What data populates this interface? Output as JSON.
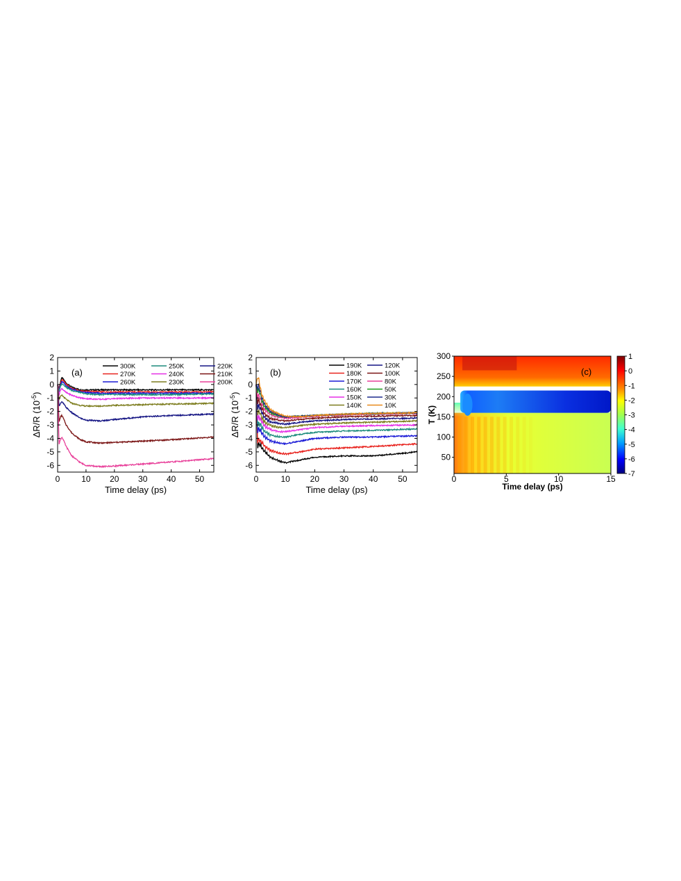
{
  "chart_data": [
    {
      "type": "line",
      "panel_label": "(a)",
      "xlabel": "Time delay (ps)",
      "ylabel_main": "ΔR/R (10",
      "ylabel_exp": "-5",
      "ylabel_tail": ")",
      "xlim": [
        0,
        55
      ],
      "ylim": [
        -6.5,
        2
      ],
      "xticks": [
        0,
        10,
        20,
        30,
        40,
        50
      ],
      "yticks": [
        -6,
        -5,
        -4,
        -3,
        -2,
        -1,
        0,
        1,
        2
      ],
      "legend_position": "top-right",
      "legend_columns": 3,
      "series": [
        {
          "name": "300K",
          "color": "#000000",
          "x": [
            0,
            0.5,
            1,
            1.5,
            2,
            3,
            5,
            8,
            10,
            15,
            20,
            30,
            40,
            55
          ],
          "y": [
            0,
            -0.3,
            0.2,
            0.5,
            0.4,
            0.1,
            -0.2,
            -0.4,
            -0.4,
            -0.4,
            -0.4,
            -0.4,
            -0.4,
            -0.4
          ]
        },
        {
          "name": "270K",
          "color": "#e8231e",
          "x": [
            0,
            0.5,
            1,
            1.5,
            2,
            3,
            5,
            8,
            10,
            15,
            20,
            30,
            40,
            55
          ],
          "y": [
            0,
            -0.4,
            0.1,
            0.35,
            0.3,
            0.0,
            -0.3,
            -0.5,
            -0.5,
            -0.55,
            -0.55,
            -0.55,
            -0.55,
            -0.55
          ]
        },
        {
          "name": "260K",
          "color": "#1a1ad6",
          "x": [
            0,
            0.5,
            1,
            1.5,
            2,
            3,
            5,
            8,
            10,
            15,
            20,
            30,
            40,
            55
          ],
          "y": [
            0,
            -0.5,
            0.0,
            0.2,
            0.15,
            -0.1,
            -0.35,
            -0.55,
            -0.6,
            -0.65,
            -0.65,
            -0.65,
            -0.65,
            -0.65
          ]
        },
        {
          "name": "250K",
          "color": "#1b8a7c",
          "x": [
            0,
            0.5,
            1,
            1.5,
            2,
            3,
            5,
            8,
            10,
            15,
            20,
            30,
            40,
            55
          ],
          "y": [
            0,
            -0.6,
            -0.1,
            0.05,
            0.0,
            -0.2,
            -0.45,
            -0.6,
            -0.7,
            -0.75,
            -0.75,
            -0.75,
            -0.75,
            -0.7
          ]
        },
        {
          "name": "240K",
          "color": "#e62fe6",
          "x": [
            0,
            0.5,
            1,
            1.5,
            2,
            3,
            5,
            8,
            10,
            15,
            20,
            30,
            40,
            55
          ],
          "y": [
            0,
            -0.8,
            -0.4,
            -0.3,
            -0.4,
            -0.6,
            -0.8,
            -1.0,
            -1.05,
            -1.1,
            -1.05,
            -1.0,
            -1.0,
            -1.0
          ]
        },
        {
          "name": "230K",
          "color": "#7d7d1e",
          "x": [
            0,
            0.5,
            1,
            1.5,
            2,
            3,
            5,
            8,
            10,
            15,
            20,
            30,
            40,
            55
          ],
          "y": [
            0,
            -1.1,
            -0.9,
            -0.8,
            -0.9,
            -1.1,
            -1.4,
            -1.55,
            -1.6,
            -1.6,
            -1.55,
            -1.5,
            -1.45,
            -1.4
          ]
        },
        {
          "name": "220K",
          "color": "#141483",
          "x": [
            0,
            0.5,
            1,
            1.5,
            2,
            3,
            5,
            8,
            10,
            15,
            20,
            30,
            40,
            55
          ],
          "y": [
            0,
            -1.6,
            -1.4,
            -1.3,
            -1.4,
            -1.7,
            -2.1,
            -2.5,
            -2.65,
            -2.7,
            -2.6,
            -2.4,
            -2.3,
            -2.2
          ]
        },
        {
          "name": "210K",
          "color": "#7a1414",
          "x": [
            0,
            0.5,
            1,
            1.5,
            2,
            3,
            5,
            8,
            10,
            15,
            20,
            30,
            40,
            55
          ],
          "y": [
            0,
            -2.8,
            -2.4,
            -2.3,
            -2.5,
            -3.0,
            -3.6,
            -4.1,
            -4.25,
            -4.35,
            -4.3,
            -4.2,
            -4.1,
            -3.9
          ]
        },
        {
          "name": "200K",
          "color": "#e8409a",
          "x": [
            0,
            0.5,
            1,
            1.5,
            2,
            3,
            5,
            8,
            10,
            15,
            20,
            30,
            40,
            55
          ],
          "y": [
            0,
            -4.4,
            -4.1,
            -3.9,
            -4.1,
            -4.6,
            -5.3,
            -5.8,
            -6.0,
            -6.1,
            -6.05,
            -5.9,
            -5.75,
            -5.5
          ]
        }
      ]
    },
    {
      "type": "line",
      "panel_label": "(b)",
      "xlabel": "Time delay (ps)",
      "ylabel_main": "ΔR/R (10",
      "ylabel_exp": "-5",
      "ylabel_tail": ")",
      "xlim": [
        0,
        55
      ],
      "ylim": [
        -6.5,
        2
      ],
      "xticks": [
        0,
        10,
        20,
        30,
        40,
        50
      ],
      "yticks": [
        -6,
        -5,
        -4,
        -3,
        -2,
        -1,
        0,
        1,
        2
      ],
      "legend_position": "top-right",
      "legend_columns": 2,
      "series": [
        {
          "name": "190K",
          "color": "#000000",
          "x": [
            0,
            0.5,
            1,
            1.5,
            2,
            3,
            5,
            8,
            10,
            15,
            20,
            30,
            40,
            55
          ],
          "y": [
            0,
            -4.6,
            -4.4,
            -4.5,
            -4.7,
            -5.0,
            -5.4,
            -5.7,
            -5.8,
            -5.6,
            -5.4,
            -5.3,
            -5.3,
            -5.0
          ]
        },
        {
          "name": "180K",
          "color": "#e8231e",
          "x": [
            0,
            0.5,
            1,
            1.5,
            2,
            3,
            5,
            8,
            10,
            15,
            20,
            30,
            40,
            55
          ],
          "y": [
            0,
            -4.2,
            -4.1,
            -4.2,
            -4.3,
            -4.6,
            -4.9,
            -5.1,
            -5.15,
            -5.0,
            -4.8,
            -4.7,
            -4.6,
            -4.4
          ]
        },
        {
          "name": "170K",
          "color": "#1a1ad6",
          "x": [
            0,
            0.5,
            1,
            1.5,
            2,
            3,
            5,
            8,
            10,
            15,
            20,
            30,
            40,
            55
          ],
          "y": [
            0,
            -3.4,
            -3.3,
            -3.4,
            -3.6,
            -3.9,
            -4.2,
            -4.35,
            -4.4,
            -4.2,
            -4.0,
            -3.9,
            -3.9,
            -3.8
          ]
        },
        {
          "name": "160K",
          "color": "#1b8a7c",
          "x": [
            0,
            0.5,
            1,
            1.5,
            2,
            3,
            5,
            8,
            10,
            15,
            20,
            30,
            40,
            55
          ],
          "y": [
            0,
            -3.0,
            -2.9,
            -3.0,
            -3.2,
            -3.5,
            -3.75,
            -3.9,
            -3.9,
            -3.7,
            -3.55,
            -3.45,
            -3.4,
            -3.3
          ]
        },
        {
          "name": "150K",
          "color": "#e62fe6",
          "x": [
            0,
            0.5,
            1,
            1.5,
            2,
            3,
            5,
            8,
            10,
            15,
            20,
            30,
            40,
            55
          ],
          "y": [
            0,
            -2.5,
            -2.4,
            -2.6,
            -2.8,
            -3.1,
            -3.35,
            -3.5,
            -3.5,
            -3.35,
            -3.2,
            -3.1,
            -3.05,
            -3.0
          ]
        },
        {
          "name": "140K",
          "color": "#7d7d1e",
          "x": [
            0,
            0.5,
            1,
            1.5,
            2,
            3,
            5,
            8,
            10,
            15,
            20,
            30,
            40,
            55
          ],
          "y": [
            0,
            -2.1,
            -2.0,
            -2.2,
            -2.5,
            -2.8,
            -3.05,
            -3.2,
            -3.2,
            -3.05,
            -2.95,
            -2.85,
            -2.8,
            -2.7
          ]
        },
        {
          "name": "120K",
          "color": "#141483",
          "x": [
            0,
            0.5,
            1,
            1.5,
            2,
            3,
            5,
            8,
            10,
            15,
            20,
            30,
            40,
            55
          ],
          "y": [
            0,
            -1.7,
            -1.6,
            -1.8,
            -2.1,
            -2.5,
            -2.8,
            -2.9,
            -2.95,
            -2.8,
            -2.7,
            -2.6,
            -2.55,
            -2.5
          ]
        },
        {
          "name": "100K",
          "color": "#7a1414",
          "x": [
            0,
            0.5,
            1,
            1.5,
            2,
            3,
            5,
            8,
            10,
            15,
            20,
            30,
            40,
            55
          ],
          "y": [
            0,
            -1.3,
            -1.2,
            -1.5,
            -1.8,
            -2.2,
            -2.55,
            -2.65,
            -2.7,
            -2.6,
            -2.5,
            -2.4,
            -2.35,
            -2.3
          ]
        },
        {
          "name": "80K",
          "color": "#e8409a",
          "x": [
            0,
            0.5,
            1,
            1.5,
            2,
            3,
            5,
            8,
            10,
            15,
            20,
            30,
            40,
            55
          ],
          "y": [
            0,
            -0.9,
            -0.8,
            -1.1,
            -1.5,
            -1.9,
            -2.25,
            -2.45,
            -2.5,
            -2.45,
            -2.35,
            -2.25,
            -2.2,
            -2.15
          ]
        },
        {
          "name": "50K",
          "color": "#1a9a1a",
          "x": [
            0,
            0.5,
            1,
            1.5,
            2,
            3,
            5,
            8,
            10,
            15,
            20,
            30,
            40,
            55
          ],
          "y": [
            0,
            -0.5,
            -0.4,
            -0.8,
            -1.2,
            -1.7,
            -2.1,
            -2.35,
            -2.4,
            -2.35,
            -2.3,
            -2.2,
            -2.15,
            -2.1
          ]
        },
        {
          "name": "30K",
          "color": "#1c2a8c",
          "x": [
            0,
            0.5,
            1,
            1.5,
            2,
            3,
            5,
            8,
            10,
            15,
            20,
            30,
            40,
            55
          ],
          "y": [
            0,
            -0.2,
            -0.1,
            -0.6,
            -1.0,
            -1.5,
            -2.0,
            -2.3,
            -2.4,
            -2.35,
            -2.3,
            -2.2,
            -2.15,
            -2.1
          ]
        },
        {
          "name": "10K",
          "color": "#e8891a",
          "x": [
            0,
            0.5,
            1,
            1.5,
            2,
            3,
            5,
            8,
            10,
            15,
            20,
            30,
            40,
            55
          ],
          "y": [
            0,
            0.6,
            0.3,
            -0.4,
            -0.8,
            -1.3,
            -1.9,
            -2.2,
            -2.35,
            -2.4,
            -2.3,
            -2.2,
            -2.15,
            -2.1
          ]
        }
      ]
    },
    {
      "type": "heatmap",
      "panel_label": "(c)",
      "xlabel": "Time delay (ps)",
      "ylabel": "T (K)",
      "xlim": [
        0,
        15
      ],
      "ylim": [
        10,
        300
      ],
      "xticks": [
        0,
        5,
        10,
        15
      ],
      "yticks": [
        50,
        100,
        150,
        200,
        250,
        300
      ],
      "colorbar_ticks": [
        1,
        0,
        -1,
        -2,
        -3,
        -4,
        -5,
        -6,
        -7
      ],
      "colorbar_range": [
        -7,
        1
      ],
      "colormap": [
        "#00007f",
        "#0000ff",
        "#00a0ff",
        "#40ffd0",
        "#a0ff50",
        "#ffff00",
        "#ff8c00",
        "#ff0000",
        "#7f0000"
      ],
      "regions": [
        {
          "t_range": [
            220,
            300
          ],
          "value": 0.3
        },
        {
          "t_range": [
            160,
            220
          ],
          "value": -6.0
        },
        {
          "t_range": [
            10,
            160
          ],
          "value": -2.2
        }
      ]
    }
  ]
}
